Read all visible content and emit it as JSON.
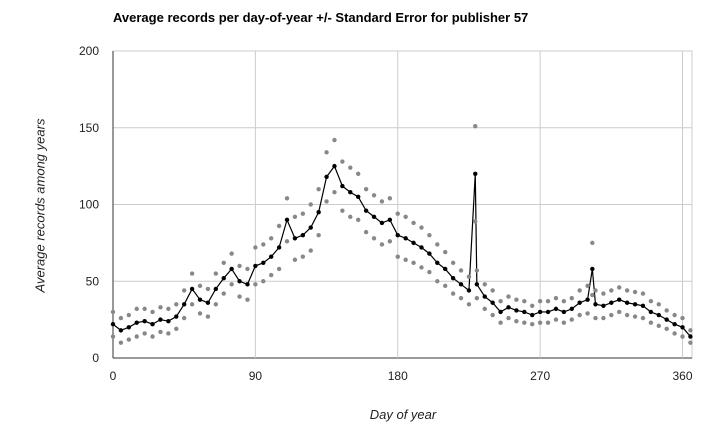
{
  "chart_data": {
    "type": "line",
    "title": "Average records per day-of-year +/- Standard Error for publisher 57",
    "xlabel": "Day of year",
    "ylabel": "Average records among years",
    "xlim": [
      0,
      366
    ],
    "ylim": [
      0,
      200
    ],
    "x_ticks": [
      0,
      90,
      180,
      270,
      360
    ],
    "y_ticks": [
      0,
      50,
      100,
      150,
      200
    ],
    "grid": true,
    "colors": {
      "mean": "#000000",
      "error": "#888888",
      "grid": "#cccccc"
    },
    "series": [
      {
        "role": "mean",
        "x": [
          0,
          5,
          10,
          15,
          20,
          25,
          30,
          35,
          40,
          45,
          50,
          55,
          60,
          65,
          70,
          75,
          80,
          85,
          90,
          95,
          100,
          105,
          110,
          115,
          120,
          125,
          130,
          135,
          140,
          145,
          150,
          155,
          160,
          165,
          170,
          175,
          180,
          185,
          190,
          195,
          200,
          205,
          210,
          215,
          220,
          225,
          229,
          230,
          235,
          240,
          245,
          250,
          255,
          260,
          265,
          270,
          275,
          280,
          285,
          290,
          295,
          300,
          303,
          305,
          310,
          315,
          320,
          325,
          330,
          335,
          340,
          345,
          350,
          355,
          360,
          365
        ],
        "y": [
          22,
          18,
          20,
          23,
          24,
          22,
          25,
          24,
          27,
          35,
          45,
          38,
          36,
          45,
          52,
          58,
          50,
          48,
          60,
          62,
          66,
          72,
          90,
          78,
          80,
          85,
          95,
          118,
          125,
          112,
          108,
          105,
          96,
          92,
          88,
          90,
          80,
          78,
          75,
          72,
          68,
          62,
          58,
          52,
          48,
          44,
          120,
          48,
          40,
          36,
          30,
          33,
          31,
          30,
          28,
          30,
          30,
          32,
          30,
          32,
          36,
          38,
          58,
          35,
          34,
          36,
          38,
          36,
          35,
          34,
          30,
          28,
          25,
          22,
          20,
          14
        ]
      },
      {
        "role": "upper",
        "x": [
          0,
          5,
          10,
          15,
          20,
          25,
          30,
          35,
          40,
          45,
          50,
          55,
          60,
          65,
          70,
          75,
          80,
          85,
          90,
          95,
          100,
          105,
          110,
          115,
          120,
          125,
          130,
          135,
          140,
          145,
          150,
          155,
          160,
          165,
          170,
          175,
          180,
          185,
          190,
          195,
          200,
          205,
          210,
          215,
          220,
          225,
          229,
          230,
          235,
          240,
          245,
          250,
          255,
          260,
          265,
          270,
          275,
          280,
          285,
          290,
          295,
          300,
          303,
          305,
          310,
          315,
          320,
          325,
          330,
          335,
          340,
          345,
          350,
          355,
          360,
          365
        ],
        "y": [
          30,
          26,
          28,
          32,
          32,
          30,
          33,
          32,
          35,
          44,
          55,
          47,
          45,
          55,
          62,
          68,
          60,
          58,
          72,
          74,
          78,
          86,
          104,
          92,
          94,
          100,
          110,
          134,
          142,
          128,
          124,
          120,
          110,
          106,
          102,
          104,
          94,
          92,
          88,
          85,
          80,
          74,
          69,
          62,
          57,
          53,
          151,
          57,
          48,
          44,
          37,
          40,
          38,
          37,
          34,
          37,
          37,
          39,
          37,
          39,
          44,
          47,
          75,
          44,
          42,
          44,
          46,
          44,
          43,
          42,
          37,
          35,
          31,
          28,
          26,
          18
        ]
      },
      {
        "role": "lower",
        "x": [
          0,
          5,
          10,
          15,
          20,
          25,
          30,
          35,
          40,
          45,
          50,
          55,
          60,
          65,
          70,
          75,
          80,
          85,
          90,
          95,
          100,
          105,
          110,
          115,
          120,
          125,
          130,
          135,
          140,
          145,
          150,
          155,
          160,
          165,
          170,
          175,
          180,
          185,
          190,
          195,
          200,
          205,
          210,
          215,
          220,
          225,
          229,
          230,
          235,
          240,
          245,
          250,
          255,
          260,
          265,
          270,
          275,
          280,
          285,
          290,
          295,
          300,
          303,
          305,
          310,
          315,
          320,
          325,
          330,
          335,
          340,
          345,
          350,
          355,
          360,
          365
        ],
        "y": [
          14,
          10,
          12,
          14,
          16,
          14,
          17,
          16,
          19,
          26,
          35,
          29,
          27,
          35,
          42,
          48,
          40,
          38,
          48,
          50,
          54,
          58,
          76,
          64,
          66,
          70,
          80,
          102,
          108,
          96,
          92,
          90,
          82,
          78,
          74,
          76,
          66,
          64,
          62,
          59,
          56,
          50,
          47,
          42,
          39,
          35,
          89,
          39,
          32,
          28,
          23,
          26,
          24,
          23,
          22,
          23,
          23,
          25,
          23,
          25,
          28,
          29,
          41,
          26,
          26,
          28,
          30,
          28,
          27,
          26,
          23,
          21,
          19,
          16,
          14,
          10
        ]
      }
    ]
  }
}
